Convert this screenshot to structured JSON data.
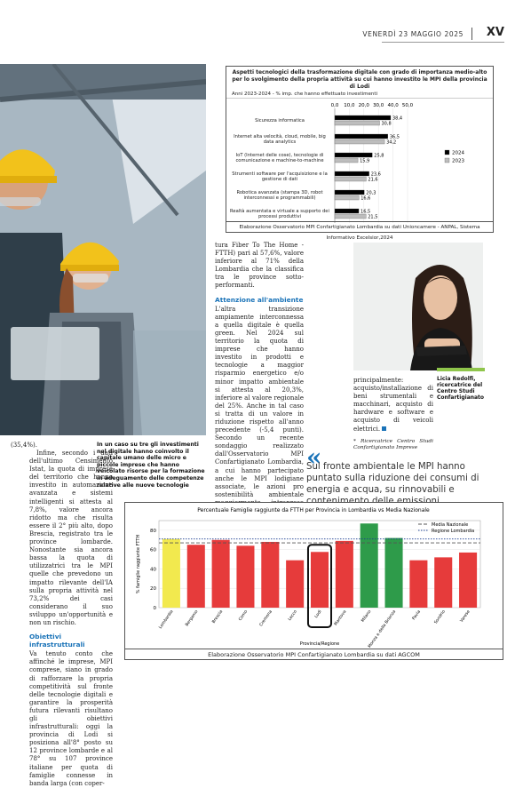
{
  "header": {
    "date": "VENERDÌ 23 MAGGIO 2025",
    "page": "XV"
  },
  "caption_photo": "In un caso su tre gli investimenti nel digitale hanno coinvolto il capitale umano delle micro e piccole imprese che hanno veicolato risorse per la formazione in adeguamento delle competenze relative alle nuove tecnologie",
  "col1": {
    "p1": "(35,4%).",
    "p2": "Infine, secondo i dati dell'ultimo Censimento Istat, la quota di imprese del territorio che hanno investito in automazione avanzata e sistemi intelligenti si attesta al 7,8%, valore ancora ridotto ma che risulta essere il 2° più alto, dopo Brescia, registrato tra le province lombarde. Nonostante sia ancora bassa la quota di utilizzatrici tra le MPI quelle che prevedono un impatto rilevante dell'IA sulla propria attività nel 73,2% dei casi considerano il suo sviluppo un'opportunità e non un rischio.",
    "h": "Obiettivi infrastrutturali",
    "p3": "Va tenuto conto che affinché le imprese, MPI comprese, siano in grado di rafforzare la propria competitività sul fronte delle tecnologie digitali e garantire la prosperità futura rilevanti risultano gli obiettivi infrastrutturali: oggi la provincia di Lodi si posiziona all'8° posto su 12 province lombarde e al 78° su 107 province italiane per quota di famiglie connesse in banda larga (con coper-"
  },
  "col2": {
    "p1": "tura Fiber To The Home - FTTH) pari al 57,6%, valore inferiore al 71% della Lombardia che la classifica tra le province sotto-performanti.",
    "h": "Attenzione all'ambiente",
    "p2": "L'altra transizione ampiamente interconnessa a quella digitale è quella green. Nel 2024 sul territorio la quota di imprese che hanno investito in prodotti e tecnologie a maggior risparmio energetico e/o minor impatto ambientale si attesta al 20,3%, inferiore al valore regionale del 25%. Anche in tal caso si tratta di un valore in riduzione rispetto all'anno precedente (-5,4 punti). Secondo un recente sondaggio realizzato dall'Osservatorio MPI Confartigianato Lombardia, a cui hanno partecipato anche le MPI lodigiane associate, le azioni pro sostenibilità ambientale maggiormente intraprese dalle MPI sono: miglioramento dello smaltimento dei rifiuti, riduzione dei consumi di energia, riduzione dei consumi di acqua, utilizzo di energie rinnovabili e riduzione delle emissioni inquinanti. Mentre le voci di spesa verso cui sono state indirizzate maggiori risorse per avvicinarsi ad obiettivi di sostenibilità sono state"
  },
  "col3": {
    "p1": "principalmente: acquisto/installazione di beni strumentali e macchinari, acquisto di hardware e software e acquisto di veicoli elettrici.",
    "note": "* Ricercatrice Centro Studi Confartigianato Imprese"
  },
  "portrait_caption": {
    "name": "Licia Redolfi,",
    "role": "ricercatrice del Centro Studi Confartigianato"
  },
  "quote": "Sul fronte ambientale le MPI hanno puntato sulla riduzione dei consumi di energia e acqua, su rinnovabili e contenimento delle emissioni",
  "chart_data": [
    {
      "type": "bar",
      "title": "Aspetti tecnologici della trasformazione digitale con grado di importanza medio-alto per lo svolgimento della propria attività su cui hanno investito le MPI della provincia di Lodi",
      "subtitle": "Anni 2023-2024 - % imp. che hanno effettuato investimenti",
      "orientation": "horizontal",
      "categories": [
        "Sicurezza informatica",
        "Internet alta velocità, cloud, mobile, big data analytics",
        "IoT (Internet delle cose), tecnologie di comunicazione e machine-to-machine",
        "Strumenti software per l'acquisizione e la gestione di dati",
        "Robotica avanzata (stampa 3D, robot interconnessi e programmabili)",
        "Realtà aumentata e virtuale a supporto dei processi produttivi"
      ],
      "series": [
        {
          "name": "2024",
          "values": [
            38.4,
            36.5,
            25.8,
            23.6,
            20.3,
            16.5
          ],
          "labels": [
            "38,4",
            "36,5",
            "25,8",
            "23,6",
            "20,3",
            "16,5"
          ],
          "color": "#000000"
        },
        {
          "name": "2023",
          "values": [
            30.8,
            34.2,
            15.9,
            21.6,
            16.6,
            21.5
          ],
          "labels": [
            "30,8",
            "34,2",
            "15,9",
            "21,6",
            "16,6",
            "21,5"
          ],
          "color": "#bdbdbd"
        }
      ],
      "ticks": [
        "0,0",
        "10,0",
        "20,0",
        "30,0",
        "40,0",
        "50,0"
      ],
      "xlim": [
        0,
        50
      ],
      "legend": "right",
      "source": "Elaborazione Osservatorio MPI Confartigianato Lombardia su dati Unioncamere - ANPAL, Sistema Informativo Excelsior,2024"
    },
    {
      "type": "bar",
      "title": "Percentuale Famiglie raggiunte da FTTH per Provincia in Lombardia vs Media Nazionale",
      "xlabel": "Provincia/Regione",
      "ylabel": "% famiglie raggiunte FTTH",
      "categories": [
        "Lombardia",
        "Bergamo",
        "Brescia",
        "Como",
        "Cremona",
        "Lecco",
        "Lodi",
        "Mantova",
        "Milano",
        "Monza e della Brianza",
        "Pavia",
        "Sondrio",
        "Varese"
      ],
      "values": [
        71,
        65,
        70,
        64,
        68,
        49,
        57.6,
        69,
        87,
        72,
        49,
        52,
        57
      ],
      "colors": [
        "#f2e94e",
        "#e63b3b",
        "#e63b3b",
        "#e63b3b",
        "#e63b3b",
        "#e63b3b",
        "#e63b3b",
        "#e63b3b",
        "#2e9b4a",
        "#2e9b4a",
        "#e63b3b",
        "#e63b3b",
        "#e63b3b"
      ],
      "highlight": "Lodi",
      "ylim": [
        0,
        90
      ],
      "yticks": [
        0,
        20,
        40,
        60,
        80
      ],
      "reference_lines": [
        {
          "name": "Media Nazionale",
          "value": 67,
          "style": "dashed",
          "color": "#555555"
        },
        {
          "name": "Regione Lombardia",
          "value": 71,
          "style": "dotted",
          "color": "#1a3d8f"
        }
      ],
      "legend": "top-right",
      "source": "Elaborazione Osservatorio MPI Confartigianato Lombardia su dati AGCOM"
    }
  ]
}
